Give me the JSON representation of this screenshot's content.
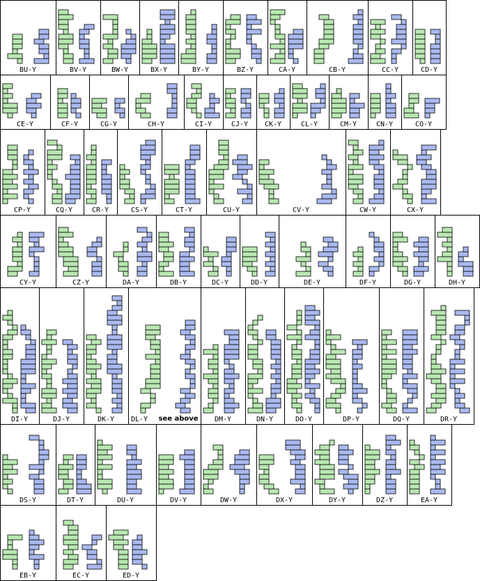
{
  "rows": [
    [
      {
        "label": "BU-Y"
      },
      {
        "label": "BV-Y"
      },
      {
        "label": "BW-Y"
      },
      {
        "label": "BX-Y"
      },
      {
        "label": "BY-Y"
      },
      {
        "label": "BZ-Y"
      },
      {
        "label": "CA-Y"
      },
      {
        "label": "CB-Y"
      },
      {
        "label": "CC-Y"
      },
      {
        "label": "CD-Y"
      }
    ],
    [
      {
        "label": "CE-Y"
      },
      {
        "label": "CF-Y"
      },
      {
        "label": "CG-Y"
      },
      {
        "label": "CH-Y"
      },
      {
        "label": "CI-Y"
      },
      {
        "label": "CJ-Y"
      },
      {
        "label": "CK-Y"
      },
      {
        "label": "CL-Y"
      },
      {
        "label": "CM-Y"
      },
      {
        "label": "CN-Y"
      },
      {
        "label": "CO-Y"
      }
    ],
    [
      {
        "label": "CP-Y"
      },
      {
        "label": "CQ-Y"
      },
      {
        "label": "CR-Y"
      },
      {
        "label": "CS-Y"
      },
      {
        "label": "CT-Y"
      },
      {
        "label": "CU-Y"
      },
      {
        "label": "CV-Y"
      },
      {
        "label": "CW-Y"
      },
      {
        "label": "CX-Y"
      }
    ],
    [
      {
        "label": "CY-Y"
      },
      {
        "label": "CZ-Y"
      },
      {
        "label": "DA-Y"
      },
      {
        "label": "DB-Y"
      },
      {
        "label": "DC-Y"
      },
      {
        "label": "DD-Y"
      },
      {
        "label": "DE-Y"
      },
      {
        "label": "DF-Y"
      },
      {
        "label": "DG-Y"
      },
      {
        "label": "DH-Y"
      }
    ],
    [
      {
        "label": "DI-Y"
      },
      {
        "label": "DJ-Y"
      },
      {
        "label": "DK-Y"
      },
      {
        "label": "DL-Y",
        "note": "see above"
      },
      {
        "label": "DM-Y"
      },
      {
        "label": "DN-Y"
      },
      {
        "label": "DO-Y"
      },
      {
        "label": "DP-Y"
      },
      {
        "label": "DQ-Y"
      },
      {
        "label": "DR-Y"
      }
    ],
    [
      {
        "label": "DS-Y"
      },
      {
        "label": "DT-Y"
      },
      {
        "label": "DU-Y"
      },
      {
        "label": "DV-Y"
      },
      {
        "label": "DW-Y"
      },
      {
        "label": "DX-Y"
      },
      {
        "label": "DY-Y"
      },
      {
        "label": "DZ-Y"
      },
      {
        "label": "EA-Y"
      }
    ],
    [
      {
        "label": "EB-Y"
      },
      {
        "label": "EC-Y"
      },
      {
        "label": "ED-Y"
      }
    ]
  ]
}
